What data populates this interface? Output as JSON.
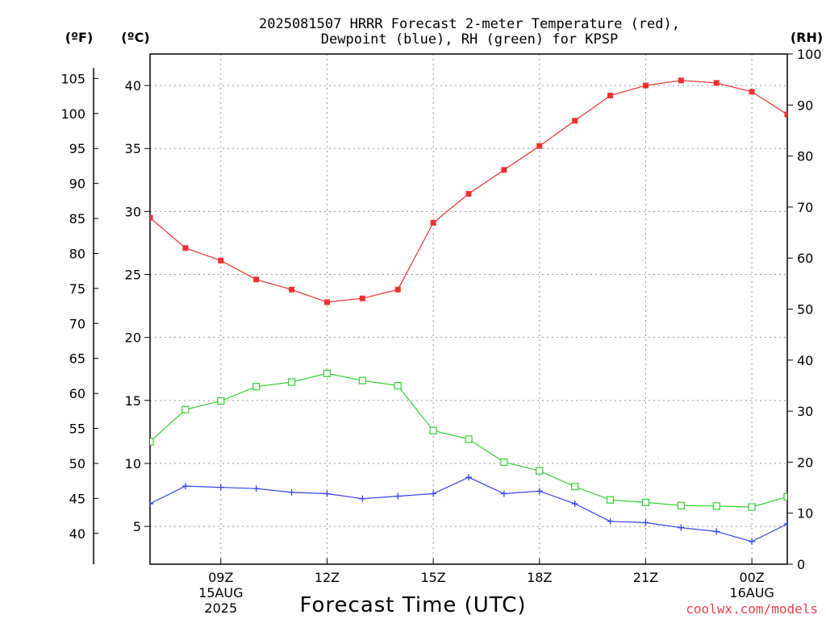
{
  "chart_data": {
    "type": "line",
    "title_line1": "2025081507 HRRR Forecast 2-meter Temperature (red),",
    "title_line2": "Dewpoint (blue), RH (green) for KPSP",
    "xlabel": "Forecast Time (UTC)",
    "credit": "coolwx.com/models",
    "units": {
      "fahrenheit": "(ºF)",
      "celsius": "(ºC)",
      "rh": "(RH)"
    },
    "hours": [
      7,
      8,
      9,
      10,
      11,
      12,
      13,
      14,
      15,
      16,
      17,
      18,
      19,
      20,
      21,
      22,
      23,
      24,
      25
    ],
    "xlim": [
      7,
      25
    ],
    "celsius_lim": [
      2,
      42.5
    ],
    "rh_lim": [
      0,
      100
    ],
    "x_ticks": [
      {
        "hour": 9,
        "label": "09Z",
        "sub1": "15AUG",
        "sub2": "2025"
      },
      {
        "hour": 12,
        "label": "12Z",
        "sub1": "",
        "sub2": ""
      },
      {
        "hour": 15,
        "label": "15Z",
        "sub1": "",
        "sub2": ""
      },
      {
        "hour": 18,
        "label": "18Z",
        "sub1": "",
        "sub2": ""
      },
      {
        "hour": 21,
        "label": "21Z",
        "sub1": "",
        "sub2": ""
      },
      {
        "hour": 24,
        "label": "00Z",
        "sub1": "16AUG",
        "sub2": ""
      }
    ],
    "celsius_ticks": [
      5,
      10,
      15,
      20,
      25,
      30,
      35,
      40
    ],
    "fahrenheit_ticks": [
      40,
      45,
      50,
      55,
      60,
      65,
      70,
      75,
      80,
      85,
      90,
      95,
      100,
      105
    ],
    "rh_ticks": [
      0,
      10,
      20,
      30,
      40,
      50,
      60,
      70,
      80,
      90,
      100
    ],
    "grid": true,
    "series": [
      {
        "name": "Temperature",
        "axis": "celsius",
        "color": "#ee3030",
        "marker": "filled-square",
        "values": [
          29.5,
          27.1,
          26.1,
          24.6,
          23.8,
          22.8,
          23.1,
          23.8,
          29.1,
          31.4,
          33.3,
          35.2,
          37.2,
          39.2,
          40.0,
          40.4,
          40.2,
          39.5,
          37.7
        ]
      },
      {
        "name": "Dewpoint",
        "axis": "celsius",
        "color": "#3040ee",
        "marker": "plus",
        "values": [
          6.8,
          8.2,
          8.1,
          8.0,
          7.7,
          7.6,
          7.2,
          7.4,
          7.6,
          8.9,
          7.6,
          7.8,
          6.8,
          5.4,
          5.3,
          4.9,
          4.6,
          3.8,
          5.2
        ]
      },
      {
        "name": "RH",
        "axis": "rh",
        "color": "#30d030",
        "marker": "open-square",
        "values": [
          24.0,
          30.3,
          32.0,
          34.8,
          35.7,
          37.4,
          36.0,
          35.0,
          26.2,
          24.5,
          20.0,
          18.3,
          15.2,
          12.6,
          12.1,
          11.5,
          11.4,
          11.2,
          13.2
        ]
      }
    ]
  }
}
